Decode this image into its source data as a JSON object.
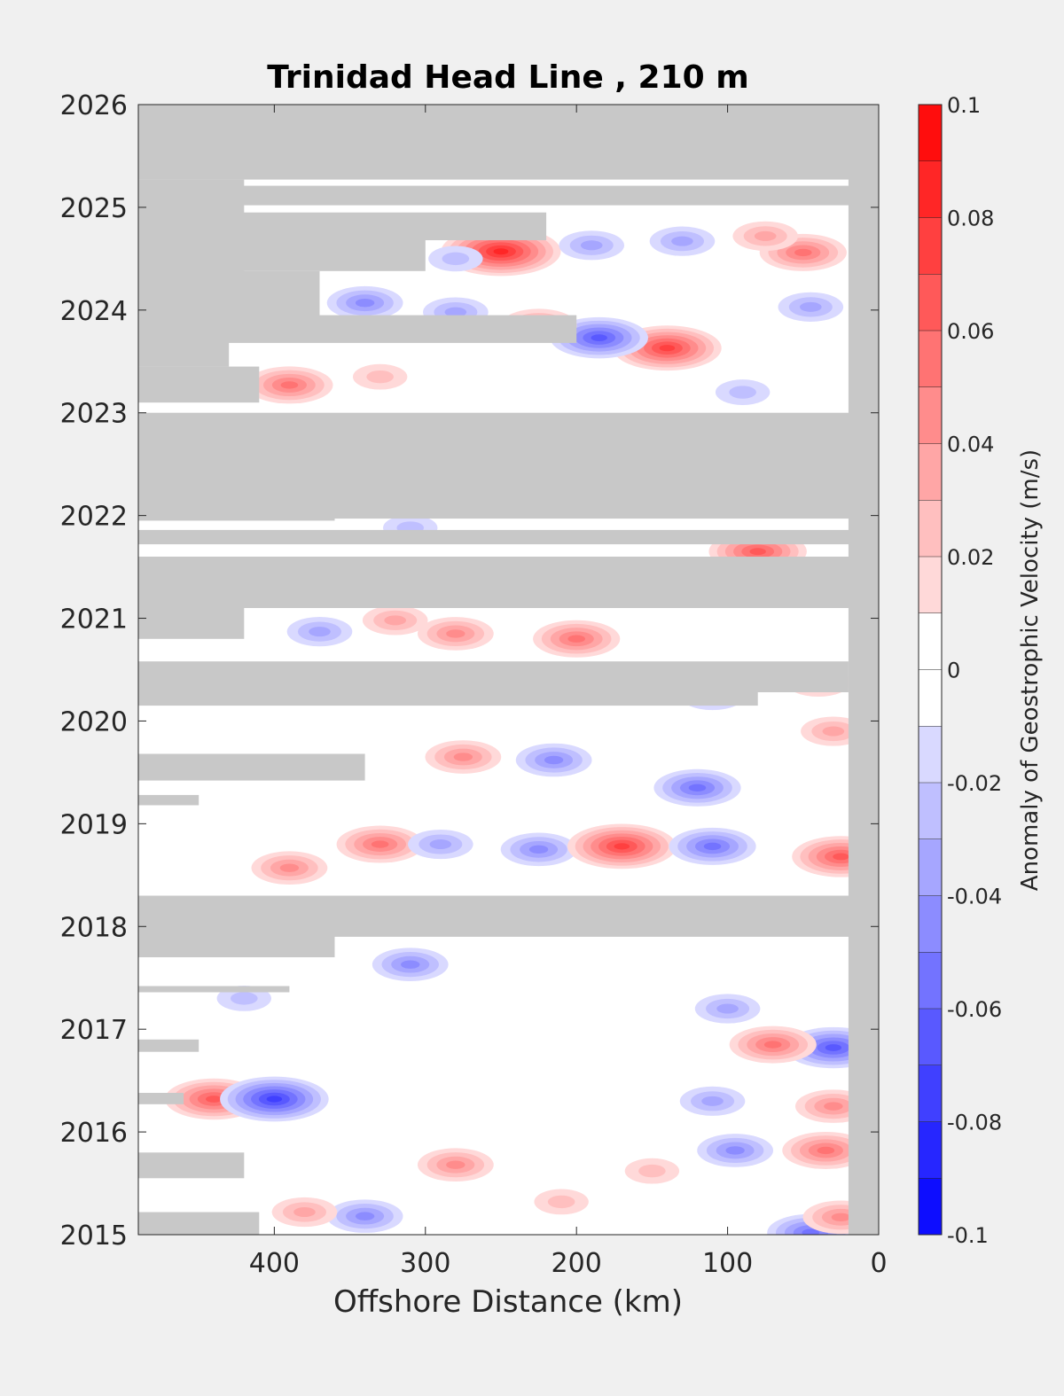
{
  "chart_data": {
    "type": "heatmap",
    "title": "Trinidad Head Line , 210 m",
    "xlabel": "Offshore Distance (km)",
    "ylabel": "",
    "colorbar_label": "Anomaly of Geostrophic Velocity (m/s)",
    "x_reversed": true,
    "xlim": [
      490,
      0
    ],
    "ylim": [
      2015,
      2026
    ],
    "x_ticks": [
      400,
      300,
      200,
      100,
      0
    ],
    "y_ticks": [
      2015,
      2016,
      2017,
      2018,
      2019,
      2020,
      2021,
      2022,
      2023,
      2024,
      2025,
      2026
    ],
    "colorbar_ticks": [
      -0.1,
      -0.08,
      -0.06,
      -0.04,
      -0.02,
      0,
      0.02,
      0.04,
      0.06,
      0.08,
      0.1
    ],
    "colorbar_tick_labels": [
      "-0.1",
      "-0.08",
      "-0.06",
      "-0.04",
      "-0.02",
      "0",
      "0.02",
      "0.04",
      "0.06",
      "0.08",
      "0.1"
    ],
    "colorbar_range": [
      -0.1,
      0.1
    ],
    "colorbar_levels": 20,
    "colors": {
      "negative": "#0000ff",
      "zero": "#ffffff",
      "positive": "#ff0000",
      "missing": "#c8c8c8",
      "background": "#f0f0f0"
    },
    "grid": false,
    "nearshore_missing_km": 20,
    "missing_periods": [
      {
        "from": 2025.27,
        "to": 2026.0,
        "offshore_km": 490,
        "inshore_km": 0
      },
      {
        "from": 2024.3,
        "to": 2025.27,
        "offshore_km": 490,
        "inshore_km": 420
      },
      {
        "from": 2025.02,
        "to": 2025.21,
        "offshore_km": 490,
        "inshore_km": 0
      },
      {
        "from": 2024.68,
        "to": 2024.95,
        "offshore_km": 490,
        "inshore_km": 220
      },
      {
        "from": 2024.38,
        "to": 2024.68,
        "offshore_km": 490,
        "inshore_km": 300
      },
      {
        "from": 2023.85,
        "to": 2024.38,
        "offshore_km": 490,
        "inshore_km": 370
      },
      {
        "from": 2023.68,
        "to": 2023.95,
        "offshore_km": 490,
        "inshore_km": 200
      },
      {
        "from": 2023.45,
        "to": 2023.85,
        "offshore_km": 490,
        "inshore_km": 430
      },
      {
        "from": 2023.1,
        "to": 2023.45,
        "offshore_km": 490,
        "inshore_km": 410
      },
      {
        "from": 2021.97,
        "to": 2023.0,
        "offshore_km": 490,
        "inshore_km": 0
      },
      {
        "from": 2021.95,
        "to": 2022.0,
        "offshore_km": 490,
        "inshore_km": 360
      },
      {
        "from": 2021.72,
        "to": 2021.86,
        "offshore_km": 490,
        "inshore_km": 0
      },
      {
        "from": 2021.1,
        "to": 2021.6,
        "offshore_km": 490,
        "inshore_km": 0
      },
      {
        "from": 2020.8,
        "to": 2021.1,
        "offshore_km": 490,
        "inshore_km": 420
      },
      {
        "from": 2020.28,
        "to": 2020.58,
        "offshore_km": 490,
        "inshore_km": 20
      },
      {
        "from": 2020.15,
        "to": 2020.3,
        "offshore_km": 490,
        "inshore_km": 80
      },
      {
        "from": 2019.42,
        "to": 2019.68,
        "offshore_km": 490,
        "inshore_km": 340
      },
      {
        "from": 2019.18,
        "to": 2019.28,
        "offshore_km": 490,
        "inshore_km": 450
      },
      {
        "from": 2017.9,
        "to": 2018.3,
        "offshore_km": 490,
        "inshore_km": 0
      },
      {
        "from": 2017.7,
        "to": 2017.92,
        "offshore_km": 490,
        "inshore_km": 360
      },
      {
        "from": 2017.36,
        "to": 2017.42,
        "offshore_km": 490,
        "inshore_km": 390
      },
      {
        "from": 2016.78,
        "to": 2016.9,
        "offshore_km": 490,
        "inshore_km": 450
      },
      {
        "from": 2016.27,
        "to": 2016.38,
        "offshore_km": 490,
        "inshore_km": 460
      },
      {
        "from": 2015.55,
        "to": 2015.8,
        "offshore_km": 490,
        "inshore_km": 420
      },
      {
        "from": 2015.0,
        "to": 2015.22,
        "offshore_km": 490,
        "inshore_km": 410
      }
    ],
    "anomalies": [
      {
        "x": 250,
        "y": 2024.57,
        "value": 0.08
      },
      {
        "x": 190,
        "y": 2024.63,
        "value": -0.03
      },
      {
        "x": 50,
        "y": 2024.56,
        "value": 0.05
      },
      {
        "x": 130,
        "y": 2024.67,
        "value": -0.03
      },
      {
        "x": 75,
        "y": 2024.72,
        "value": 0.03
      },
      {
        "x": 280,
        "y": 2024.5,
        "value": -0.02
      },
      {
        "x": 140,
        "y": 2023.63,
        "value": 0.07
      },
      {
        "x": 185,
        "y": 2023.73,
        "value": -0.06
      },
      {
        "x": 340,
        "y": 2024.07,
        "value": -0.04
      },
      {
        "x": 280,
        "y": 2023.98,
        "value": -0.03
      },
      {
        "x": 225,
        "y": 2023.85,
        "value": 0.04
      },
      {
        "x": 45,
        "y": 2024.03,
        "value": -0.03
      },
      {
        "x": 390,
        "y": 2023.27,
        "value": 0.05
      },
      {
        "x": 330,
        "y": 2023.35,
        "value": 0.02
      },
      {
        "x": 90,
        "y": 2023.2,
        "value": -0.02
      },
      {
        "x": 80,
        "y": 2021.65,
        "value": 0.06
      },
      {
        "x": 310,
        "y": 2021.88,
        "value": -0.02
      },
      {
        "x": 200,
        "y": 2020.8,
        "value": 0.05
      },
      {
        "x": 280,
        "y": 2020.85,
        "value": 0.04
      },
      {
        "x": 370,
        "y": 2020.87,
        "value": -0.03
      },
      {
        "x": 320,
        "y": 2020.98,
        "value": 0.03
      },
      {
        "x": 110,
        "y": 2020.25,
        "value": -0.03
      },
      {
        "x": 40,
        "y": 2020.38,
        "value": 0.03
      },
      {
        "x": 275,
        "y": 2019.65,
        "value": 0.04
      },
      {
        "x": 215,
        "y": 2019.62,
        "value": -0.04
      },
      {
        "x": 120,
        "y": 2019.35,
        "value": -0.05
      },
      {
        "x": 30,
        "y": 2019.9,
        "value": 0.03
      },
      {
        "x": 330,
        "y": 2018.8,
        "value": 0.05
      },
      {
        "x": 390,
        "y": 2018.57,
        "value": 0.04
      },
      {
        "x": 225,
        "y": 2018.75,
        "value": -0.04
      },
      {
        "x": 170,
        "y": 2018.78,
        "value": 0.07
      },
      {
        "x": 110,
        "y": 2018.78,
        "value": -0.05
      },
      {
        "x": 25,
        "y": 2018.68,
        "value": 0.06
      },
      {
        "x": 290,
        "y": 2018.8,
        "value": -0.03
      },
      {
        "x": 310,
        "y": 2017.63,
        "value": -0.04
      },
      {
        "x": 420,
        "y": 2017.3,
        "value": -0.02
      },
      {
        "x": 30,
        "y": 2016.82,
        "value": -0.06
      },
      {
        "x": 70,
        "y": 2016.85,
        "value": 0.05
      },
      {
        "x": 100,
        "y": 2017.2,
        "value": -0.03
      },
      {
        "x": 440,
        "y": 2016.32,
        "value": 0.06
      },
      {
        "x": 400,
        "y": 2016.32,
        "value": -0.07
      },
      {
        "x": 30,
        "y": 2016.25,
        "value": 0.04
      },
      {
        "x": 110,
        "y": 2016.3,
        "value": -0.03
      },
      {
        "x": 35,
        "y": 2015.82,
        "value": 0.05
      },
      {
        "x": 95,
        "y": 2015.82,
        "value": -0.04
      },
      {
        "x": 280,
        "y": 2015.68,
        "value": 0.04
      },
      {
        "x": 340,
        "y": 2015.18,
        "value": -0.04
      },
      {
        "x": 45,
        "y": 2015.02,
        "value": -0.05
      },
      {
        "x": 25,
        "y": 2015.17,
        "value": 0.04
      },
      {
        "x": 380,
        "y": 2015.22,
        "value": 0.03
      },
      {
        "x": 210,
        "y": 2015.32,
        "value": 0.02
      },
      {
        "x": 150,
        "y": 2015.62,
        "value": 0.02
      }
    ]
  }
}
